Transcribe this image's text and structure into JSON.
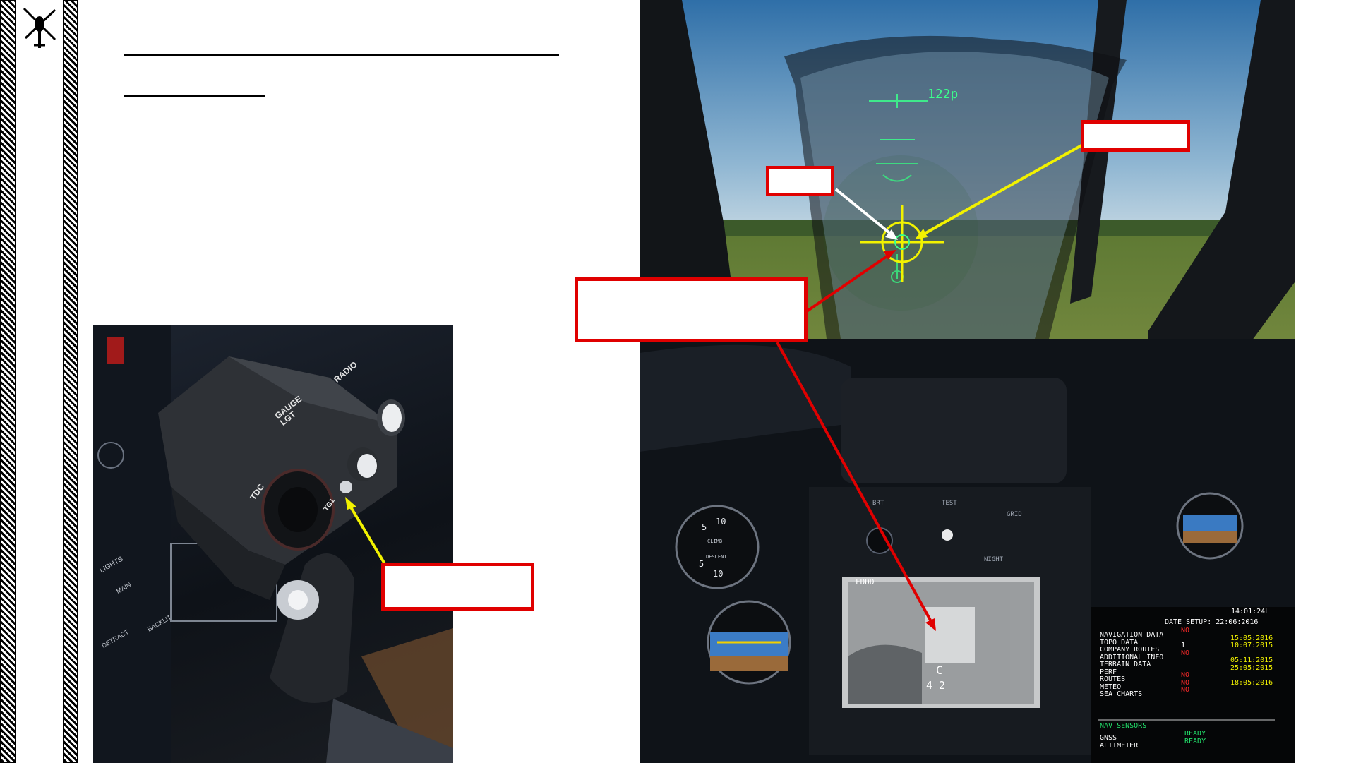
{
  "logo": {
    "icon": "helicopter-top-view-icon"
  },
  "hud": {
    "readout": "122p"
  },
  "console": {
    "gauge_lgt": "GAUGE\nLGT",
    "tdc": "TDC",
    "radio": "RADIO",
    "tg1": "TG1",
    "lights": "LIGHTS",
    "main": "MAIN",
    "backlit": "BACKLIT",
    "detract": "DETRACT"
  },
  "display": {
    "top_label": "FDDD",
    "bottom_letter": "C",
    "bottom_value": "4 2",
    "brt": "BRT",
    "test": "TEST",
    "night": "NIGHT",
    "grid": "GRID"
  },
  "panel": {
    "time": "14:01:24L",
    "date_setup": "DATE SETUP: 22:06:2016",
    "rows": [
      {
        "label": "NAVIGATION DATA",
        "status": "NO",
        "date": ""
      },
      {
        "label": "TOPO DATA",
        "status": "",
        "date": "15:05:2016"
      },
      {
        "label": "COMPANY ROUTES",
        "status": "1",
        "date": "10:07:2015"
      },
      {
        "label": "ADDITIONAL INFO",
        "status": "NO",
        "date": ""
      },
      {
        "label": "TERRAIN DATA",
        "status": "",
        "date": "05:11:2015"
      },
      {
        "label": "PERF",
        "status": "",
        "date": "25:05:2015"
      },
      {
        "label": "ROUTES",
        "status": "NO",
        "date": ""
      },
      {
        "label": "METEO",
        "status": "NO",
        "date": "18:05:2016"
      },
      {
        "label": "SEA CHARTS",
        "status": "NO",
        "date": ""
      }
    ],
    "sensors_title": "NAV SENSORS",
    "sensors": [
      {
        "label": "GNSS",
        "status": "READY"
      },
      {
        "label": "ALTIMETER",
        "status": "READY"
      }
    ]
  },
  "gauge": {
    "climb": "CLIMB",
    "descent": "DESCENT",
    "ticks": [
      "5",
      "10",
      "5",
      "10"
    ]
  },
  "colors": {
    "callout_border": "#e00000",
    "arrow_yellow": "#f2f200",
    "arrow_white": "#ffffff",
    "arrow_red": "#e00000",
    "hud_green": "#3cff8c"
  }
}
